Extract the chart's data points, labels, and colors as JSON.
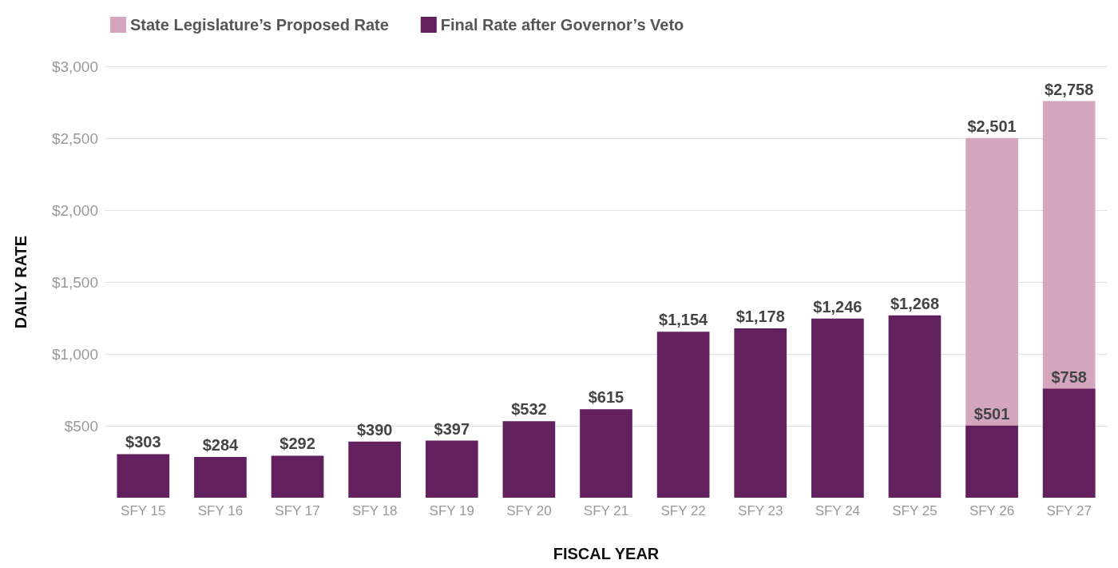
{
  "chart_data": {
    "type": "bar",
    "xlabel": "FISCAL YEAR",
    "ylabel": "DAILY RATE",
    "categories": [
      "SFY 15",
      "SFY 16",
      "SFY 17",
      "SFY 18",
      "SFY 19",
      "SFY 20",
      "SFY 21",
      "SFY 22",
      "SFY 23",
      "SFY 24",
      "SFY 25",
      "SFY 26",
      "SFY 27"
    ],
    "series": [
      {
        "name": "State Legislature’s Proposed Rate",
        "color": "#d4a6bd",
        "values": [
          null,
          null,
          null,
          null,
          null,
          null,
          null,
          null,
          null,
          null,
          null,
          2501,
          2758
        ],
        "value_labels": [
          null,
          null,
          null,
          null,
          null,
          null,
          null,
          null,
          null,
          null,
          null,
          "$2,501",
          "$2,758"
        ]
      },
      {
        "name": "Final Rate after Governor’s Veto",
        "color": "#63205e",
        "values": [
          303,
          284,
          292,
          390,
          397,
          532,
          615,
          1154,
          1178,
          1246,
          1268,
          501,
          758
        ],
        "value_labels": [
          "$303",
          "$284",
          "$292",
          "$390",
          "$397",
          "$532",
          "$615",
          "$1,154",
          "$1,178",
          "$1,246",
          "$1,268",
          "$501",
          "$758"
        ]
      }
    ],
    "ylim": [
      0,
      3000
    ],
    "yticks": [
      {
        "value": 500,
        "label": "$500"
      },
      {
        "value": 1000,
        "label": "$1,000"
      },
      {
        "value": 1500,
        "label": "$1,500"
      },
      {
        "value": 2000,
        "label": "$2,000"
      },
      {
        "value": 2500,
        "label": "$2,500"
      },
      {
        "value": 3000,
        "label": "$3,000"
      }
    ],
    "grid": "y",
    "legend": "top left"
  }
}
